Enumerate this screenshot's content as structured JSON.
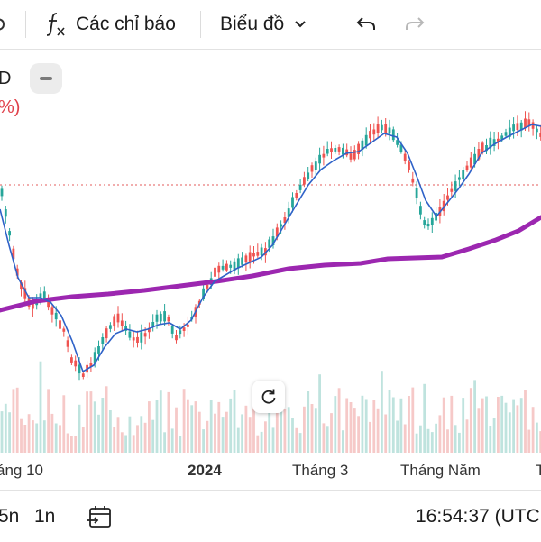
{
  "toolbar": {
    "indicators_label": "Các chỉ báo",
    "chart_type_label": "Biểu đồ"
  },
  "legend": {
    "symbol_fragment": "D",
    "change_fragment": "%)"
  },
  "x_axis": {
    "labels": [
      "áng 10",
      "2024",
      "Tháng 3",
      "Tháng Năm",
      "T"
    ]
  },
  "bottom_bar": {
    "interval_a": "5n",
    "interval_b": "1n",
    "clock": "16:54:37 (UTC"
  },
  "colors": {
    "up": "#26a69a",
    "down": "#ef5350",
    "ma_fast": "#2f62c8",
    "ma_slow": "#9c27b0",
    "price_line": "#e35b5b"
  },
  "chart_data": {
    "type": "candlestick",
    "x_labels": [
      "áng 10",
      "2024",
      "Tháng 3",
      "Tháng Năm",
      "T"
    ],
    "overlays": [
      "moving-average-fast",
      "moving-average-slow"
    ],
    "volume_histogram": true
  }
}
